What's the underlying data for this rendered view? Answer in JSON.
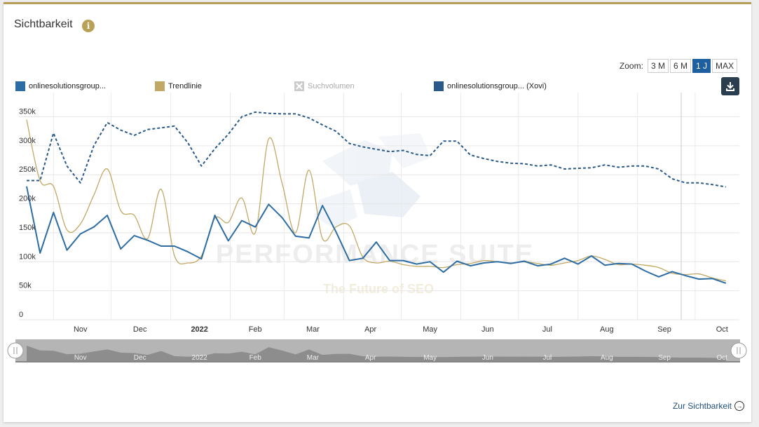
{
  "widget": {
    "title": "Sichtbarkeit",
    "info_icon": "info-icon",
    "zoom_label": "Zoom:",
    "zoom_options": [
      "3 M",
      "6 M",
      "1 J",
      "MAX"
    ],
    "zoom_active": "1 J",
    "download_icon": "download-icon",
    "footer_link": "Zur Sichtbarkeit"
  },
  "watermark": {
    "line1": "PERFORMANCE SUITE",
    "line2": "The Future of SEO"
  },
  "chart_data": {
    "type": "line",
    "x_labels": [
      "Nov",
      "Dec",
      "2022",
      "Feb",
      "Mar",
      "Apr",
      "May",
      "Jun",
      "Jul",
      "Aug",
      "Sep",
      "Oct"
    ],
    "y_ticks": [
      "0",
      "50k",
      "100k",
      "150k",
      "200k",
      "250k",
      "300k",
      "350k"
    ],
    "ylim": [
      0,
      370000
    ],
    "grid": true,
    "legend_placement": "top",
    "navigator_labels": [
      "Nov",
      "Dec",
      "2022",
      "Feb",
      "Mar",
      "Apr",
      "May",
      "Jun",
      "Jul",
      "Aug",
      "Sep",
      "Oct"
    ],
    "series": [
      {
        "name": "onlinesolutionsgroup...",
        "color": "#2e6da4",
        "style": "solid",
        "x": [
          "2021-10-18",
          "2021-10-25",
          "2021-11-01",
          "2021-11-08",
          "2021-11-15",
          "2021-11-22",
          "2021-11-29",
          "2021-12-06",
          "2021-12-13",
          "2021-12-20",
          "2021-12-27",
          "2022-01-03",
          "2022-01-10",
          "2022-01-17",
          "2022-01-24",
          "2022-01-31",
          "2022-02-07",
          "2022-02-14",
          "2022-02-21",
          "2022-02-28",
          "2022-03-07",
          "2022-03-14",
          "2022-03-21",
          "2022-03-28",
          "2022-04-04",
          "2022-04-11",
          "2022-04-18",
          "2022-04-25",
          "2022-05-02",
          "2022-05-09",
          "2022-05-16",
          "2022-05-23",
          "2022-05-30",
          "2022-06-06",
          "2022-06-13",
          "2022-06-20",
          "2022-06-27",
          "2022-07-04",
          "2022-07-11",
          "2022-07-18",
          "2022-07-25",
          "2022-08-01",
          "2022-08-08",
          "2022-08-15",
          "2022-08-22",
          "2022-08-29",
          "2022-09-05",
          "2022-09-12",
          "2022-09-19",
          "2022-09-26",
          "2022-10-03",
          "2022-10-10",
          "2022-10-17"
        ],
        "values": [
          230000,
          115000,
          185000,
          120000,
          148000,
          160000,
          180000,
          122000,
          145000,
          137000,
          127000,
          127000,
          117000,
          105000,
          180000,
          136000,
          171000,
          160000,
          199000,
          176000,
          144000,
          141000,
          197000,
          152000,
          102000,
          106000,
          134000,
          102000,
          102000,
          96000,
          100000,
          82000,
          101000,
          93000,
          98000,
          100000,
          97000,
          101000,
          93000,
          96000,
          106000,
          96000,
          110000,
          94000,
          97000,
          96000,
          84000,
          74000,
          83000,
          76000,
          70000,
          71000,
          63000
        ]
      },
      {
        "name": "Trendlinie",
        "color": "#c2a865",
        "style": "smooth",
        "x": [
          "2021-10-18",
          "2021-10-25",
          "2021-11-01",
          "2021-11-08",
          "2021-11-15",
          "2021-11-22",
          "2021-11-29",
          "2021-12-06",
          "2021-12-13",
          "2021-12-20",
          "2021-12-27",
          "2022-01-03",
          "2022-01-10",
          "2022-01-17",
          "2022-01-24",
          "2022-01-31",
          "2022-02-07",
          "2022-02-14",
          "2022-02-21",
          "2022-02-28",
          "2022-03-07",
          "2022-03-14",
          "2022-03-21",
          "2022-03-28",
          "2022-04-04",
          "2022-04-11",
          "2022-04-18",
          "2022-04-25",
          "2022-05-02",
          "2022-05-09",
          "2022-05-16",
          "2022-05-23",
          "2022-05-30",
          "2022-06-06",
          "2022-06-13",
          "2022-06-20",
          "2022-06-27",
          "2022-07-04",
          "2022-07-11",
          "2022-07-18",
          "2022-07-25",
          "2022-08-01",
          "2022-08-08",
          "2022-08-15",
          "2022-08-22",
          "2022-08-29",
          "2022-09-05",
          "2022-09-12",
          "2022-09-19",
          "2022-09-26",
          "2022-10-03",
          "2022-10-10",
          "2022-10-17"
        ],
        "values": [
          345000,
          240000,
          230000,
          155000,
          165000,
          215000,
          260000,
          188000,
          180000,
          140000,
          225000,
          110000,
          98000,
          110000,
          175000,
          168000,
          210000,
          150000,
          312000,
          235000,
          150000,
          258000,
          140000,
          160000,
          162000,
          108000,
          98000,
          101000,
          95000,
          92000,
          92000,
          90000,
          95000,
          97000,
          102000,
          100000,
          98000,
          100000,
          97000,
          94000,
          98000,
          102000,
          110000,
          104000,
          95000,
          96000,
          94000,
          90000,
          80000,
          78000,
          79000,
          72000,
          67000
        ]
      },
      {
        "name": "Suchvolumen",
        "color": "#cccccc",
        "style": "hidden",
        "x": [],
        "values": []
      },
      {
        "name": "onlinesolutionsgroup... (Xovi)",
        "color": "#2a5a8a",
        "style": "dashed",
        "x": [
          "2021-10-18",
          "2021-10-25",
          "2021-11-01",
          "2021-11-08",
          "2021-11-15",
          "2021-11-22",
          "2021-11-29",
          "2021-12-06",
          "2021-12-13",
          "2021-12-20",
          "2021-12-27",
          "2022-01-03",
          "2022-01-10",
          "2022-01-17",
          "2022-01-24",
          "2022-01-31",
          "2022-02-07",
          "2022-02-14",
          "2022-02-21",
          "2022-02-28",
          "2022-03-07",
          "2022-03-14",
          "2022-03-21",
          "2022-03-28",
          "2022-04-04",
          "2022-04-11",
          "2022-04-18",
          "2022-04-25",
          "2022-05-02",
          "2022-05-09",
          "2022-05-16",
          "2022-05-23",
          "2022-05-30",
          "2022-06-06",
          "2022-06-13",
          "2022-06-20",
          "2022-06-27",
          "2022-07-04",
          "2022-07-11",
          "2022-07-18",
          "2022-07-25",
          "2022-08-01",
          "2022-08-08",
          "2022-08-15",
          "2022-08-22",
          "2022-08-29",
          "2022-09-05",
          "2022-09-12",
          "2022-09-19",
          "2022-09-26",
          "2022-10-03",
          "2022-10-10",
          "2022-10-17"
        ],
        "values": [
          240000,
          240000,
          322000,
          265000,
          236000,
          300000,
          340000,
          327000,
          318000,
          328000,
          331000,
          334000,
          305000,
          265000,
          295000,
          320000,
          350000,
          358000,
          356000,
          355000,
          355000,
          348000,
          336000,
          325000,
          304000,
          298000,
          294000,
          290000,
          292000,
          285000,
          283000,
          308000,
          308000,
          284000,
          278000,
          273000,
          270000,
          269000,
          265000,
          267000,
          260000,
          261000,
          262000,
          267000,
          263000,
          265000,
          265000,
          260000,
          243000,
          236000,
          236000,
          233000,
          229000
        ]
      }
    ]
  }
}
